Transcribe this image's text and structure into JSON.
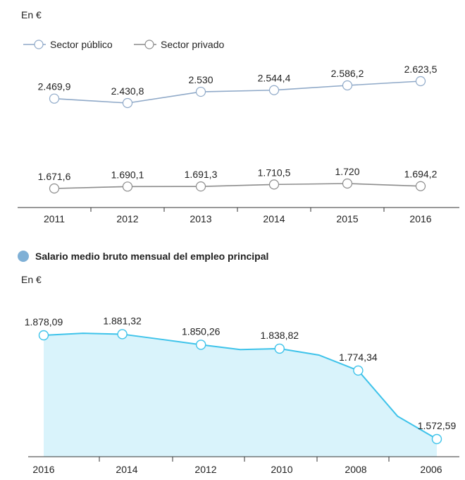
{
  "colors": {
    "publico": "#8fa9c8",
    "privado": "#8c8c8c",
    "salario_line": "#3ec3ea",
    "salario_fill": "#d9f3fb",
    "salario_bullet": "#7fb0d6",
    "axis": "#333333"
  },
  "chart1": {
    "unit_label": "En €"
  },
  "chart2": {
    "section_title": "Salario medio bruto mensual del empleo principal",
    "unit_label": "En €"
  },
  "chart_data": [
    {
      "type": "line",
      "title": "",
      "xlabel": "",
      "ylabel": "En €",
      "categories": [
        "2011",
        "2012",
        "2013",
        "2014",
        "2015",
        "2016"
      ],
      "legend": "top-left",
      "grid": false,
      "series": [
        {
          "name": "Sector público",
          "values": [
            2469.9,
            2430.8,
            2530,
            2544.4,
            2586.2,
            2623.5
          ],
          "labels": [
            "2.469,9",
            "2.430,8",
            "2.530",
            "2.544,4",
            "2.586,2",
            "2.623,5"
          ]
        },
        {
          "name": "Sector privado",
          "values": [
            1671.6,
            1690.1,
            1691.3,
            1710.5,
            1720,
            1694.2
          ],
          "labels": [
            "1.671,6",
            "1.690,1",
            "1.691,3",
            "1.710,5",
            "1.720",
            "1.694,2"
          ]
        }
      ]
    },
    {
      "type": "area",
      "title": "Salario medio bruto mensual del empleo principal",
      "xlabel": "",
      "ylabel": "En €",
      "x_ticks": [
        "2016",
        "2014",
        "2012",
        "2010",
        "2008",
        "2006"
      ],
      "grid": false,
      "series": [
        {
          "name": "",
          "x": [
            2016,
            2015,
            2014,
            2013,
            2012,
            2011,
            2010,
            2009,
            2008,
            2007,
            2006
          ],
          "values": [
            1878.09,
            1884,
            1881.32,
            1866,
            1850.26,
            1836,
            1838.82,
            1820,
            1774.34,
            1640,
            1572.59
          ],
          "labeled_x": [
            2016,
            2014,
            2012,
            2010,
            2008,
            2006
          ],
          "labels": [
            "1.878,09",
            "1.881,32",
            "1.850,26",
            "1.838,82",
            "1.774,34",
            "1.572,59"
          ]
        }
      ]
    }
  ]
}
